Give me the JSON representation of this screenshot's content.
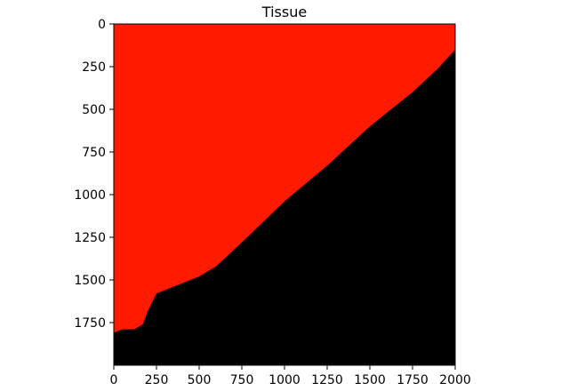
{
  "chart_data": {
    "type": "heatmap",
    "title": "Tissue",
    "xlabel": "",
    "ylabel": "",
    "xlim": [
      0,
      2000
    ],
    "ylim": [
      2000,
      0
    ],
    "x_ticks": [
      0,
      250,
      500,
      750,
      1000,
      1250,
      1500,
      1750,
      2000
    ],
    "y_ticks": [
      0,
      250,
      500,
      750,
      1000,
      1250,
      1500,
      1750
    ],
    "x_tick_labels": [
      "0",
      "250",
      "500",
      "750",
      "1000",
      "1250",
      "1500",
      "1750",
      "2000"
    ],
    "y_tick_labels": [
      "0",
      "250",
      "500",
      "750",
      "1000",
      "1250",
      "1500",
      "1750"
    ],
    "grid": false,
    "regions": [
      {
        "name": "tissue",
        "color": "#ff1a00",
        "boundary": [
          [
            0,
            0
          ],
          [
            2000,
            0
          ],
          [
            2000,
            150
          ],
          [
            1900,
            260
          ],
          [
            1750,
            400
          ],
          [
            1500,
            600
          ],
          [
            1250,
            830
          ],
          [
            1000,
            1040
          ],
          [
            750,
            1280
          ],
          [
            600,
            1420
          ],
          [
            500,
            1480
          ],
          [
            300,
            1560
          ],
          [
            250,
            1580
          ],
          [
            200,
            1680
          ],
          [
            170,
            1760
          ],
          [
            120,
            1790
          ],
          [
            50,
            1790
          ],
          [
            0,
            1810
          ]
        ]
      },
      {
        "name": "background",
        "color": "#000000"
      }
    ]
  }
}
